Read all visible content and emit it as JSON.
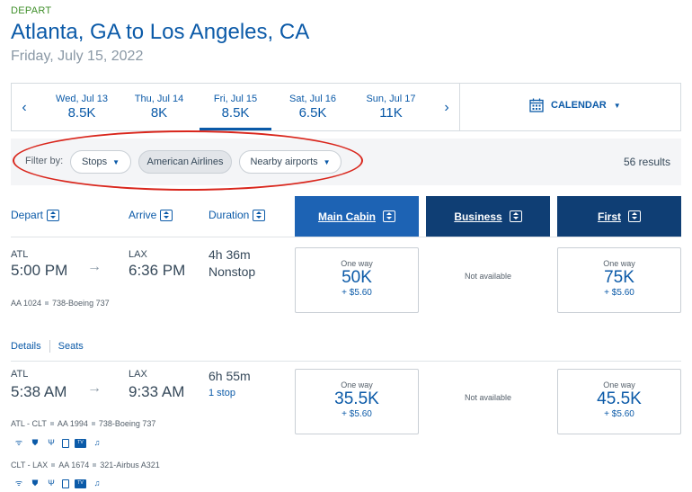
{
  "header": {
    "tag": "DEPART",
    "route": "Atlanta, GA to Los Angeles, CA",
    "date": "Friday, July 15, 2022"
  },
  "date_bar": {
    "prev_icon": "chevron-left-icon",
    "next_icon": "chevron-right-icon",
    "days": [
      {
        "label": "Wed, Jul 13",
        "value": "8.5K",
        "selected": false
      },
      {
        "label": "Thu, Jul 14",
        "value": "8K",
        "selected": false
      },
      {
        "label": "Fri, Jul 15",
        "value": "8.5K",
        "selected": true
      },
      {
        "label": "Sat, Jul 16",
        "value": "6.5K",
        "selected": false
      },
      {
        "label": "Sun, Jul 17",
        "value": "11K",
        "selected": false
      }
    ],
    "calendar_label": "CALENDAR"
  },
  "filters": {
    "label": "Filter by:",
    "stops": "Stops",
    "airline": "American Airlines",
    "nearby": "Nearby airports",
    "results": "56 results"
  },
  "columns": {
    "depart": "Depart",
    "arrive": "Arrive",
    "duration": "Duration",
    "main": "Main Cabin",
    "business": "Business",
    "first": "First"
  },
  "flights": [
    {
      "from": "ATL",
      "to": "LAX",
      "depart_time": "5:00 PM",
      "arrive_time": "6:36 PM",
      "duration": "4h 36m",
      "stops": "Nonstop",
      "flight": "AA 1024",
      "aircraft": "738-Boeing 737",
      "main": {
        "label": "One way",
        "miles": "50K",
        "tax": "+ $5.60"
      },
      "business": "Not available",
      "first": {
        "label": "One way",
        "miles": "75K",
        "tax": "+ $5.60"
      },
      "details_link": "Details",
      "seats_link": "Seats"
    },
    {
      "from": "ATL",
      "to": "LAX",
      "depart_time": "5:38 AM",
      "arrive_time": "9:33 AM",
      "duration": "6h 55m",
      "stops": "1 stop",
      "segment1": {
        "route": "ATL - CLT",
        "flight": "AA 1994",
        "aircraft": "738-Boeing 737"
      },
      "segment2": {
        "route": "CLT - LAX",
        "flight": "AA 1674",
        "aircraft": "321-Airbus A321"
      },
      "main": {
        "label": "One way",
        "miles": "35.5K",
        "tax": "+ $5.60"
      },
      "business": "Not available",
      "first": {
        "label": "One way",
        "miles": "45.5K",
        "tax": "+ $5.60"
      }
    }
  ],
  "amenity_icons": [
    "wifi-icon",
    "shield-icon",
    "usb-icon",
    "phone-icon",
    "tv-icon",
    "music-icon"
  ],
  "colors": {
    "brand_blue": "#0b5aa8",
    "cabin_dark": "#0f3e74",
    "cabin_active": "#1d63b4",
    "depart_green": "#3f8f2a",
    "annotation_red": "#d9261c"
  }
}
